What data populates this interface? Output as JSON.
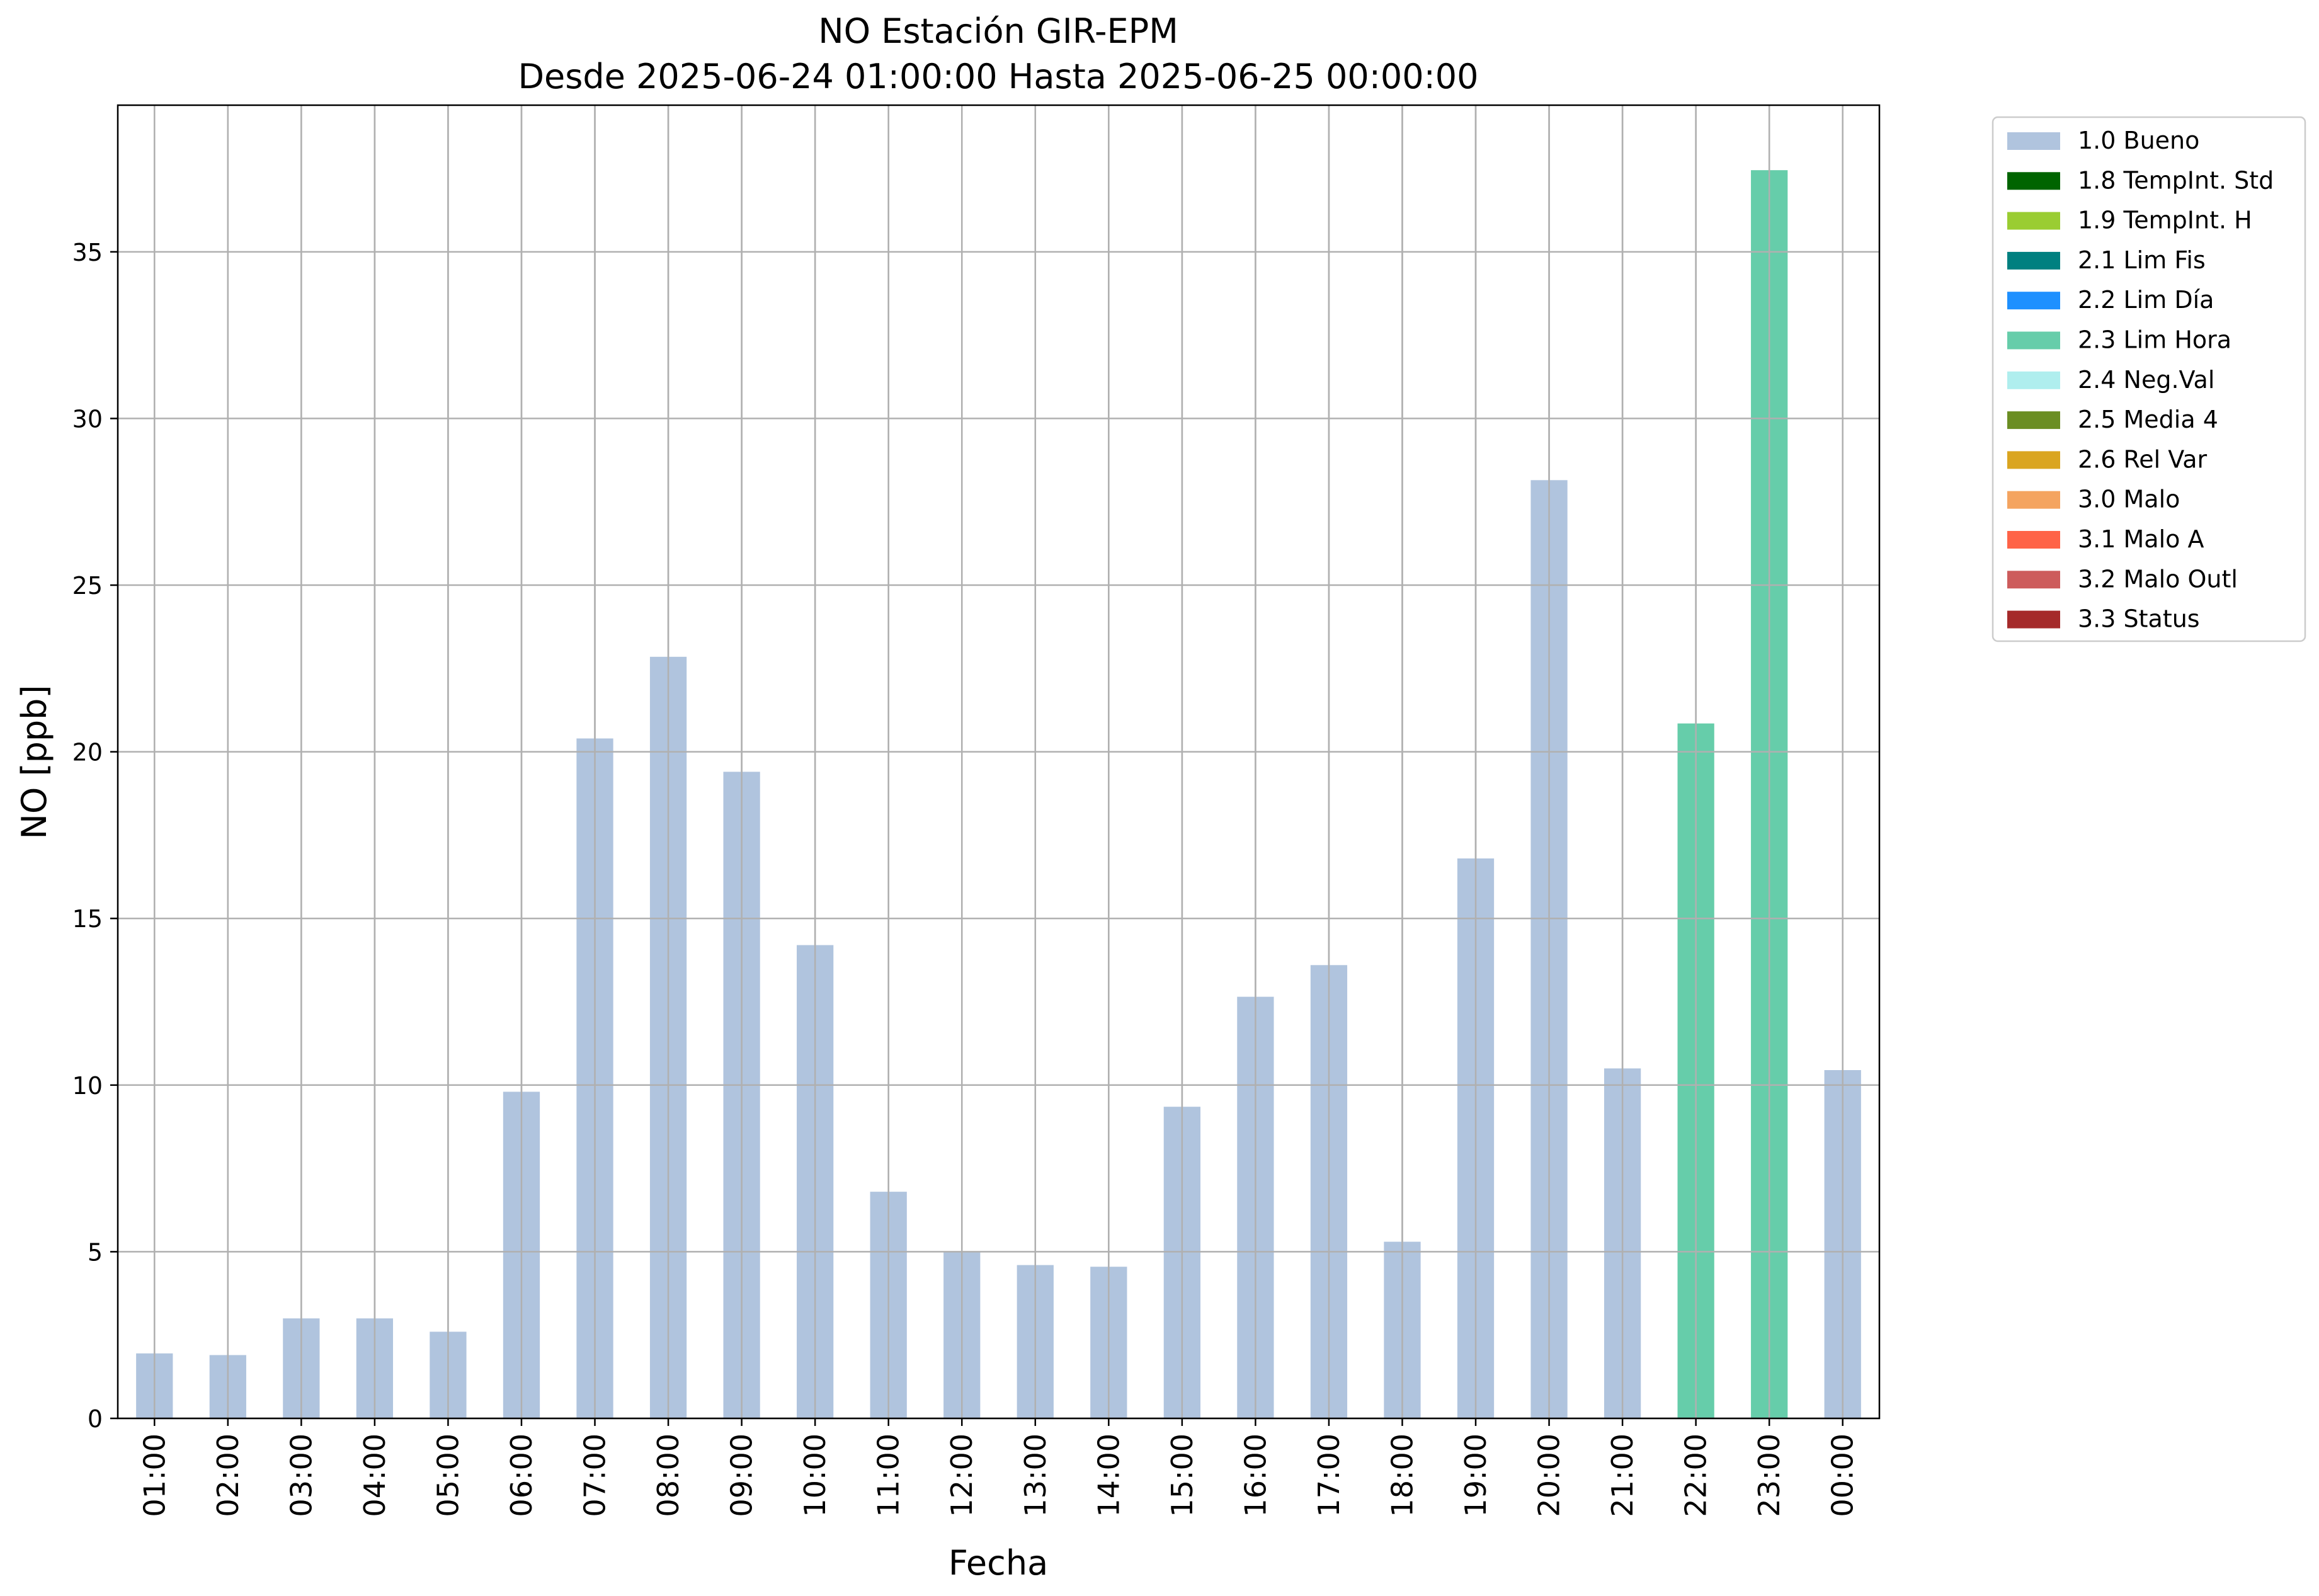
{
  "chart_data": {
    "type": "bar",
    "title": "NO Estación GIR-EPM",
    "subtitle": "Desde 2025-06-24 01:00:00 Hasta 2025-06-25 00:00:00",
    "xlabel": "Fecha",
    "ylabel": "NO [ppb]",
    "ylim": [
      0,
      39.4
    ],
    "yticks": [
      0,
      5,
      10,
      15,
      20,
      25,
      30,
      35
    ],
    "grid": true,
    "legend_position": "outside-right-top",
    "categories": [
      "01:00",
      "02:00",
      "03:00",
      "04:00",
      "05:00",
      "06:00",
      "07:00",
      "08:00",
      "09:00",
      "10:00",
      "11:00",
      "12:00",
      "13:00",
      "14:00",
      "15:00",
      "16:00",
      "17:00",
      "18:00",
      "19:00",
      "20:00",
      "21:00",
      "22:00",
      "23:00",
      "00:00"
    ],
    "values": [
      1.95,
      1.9,
      3.0,
      3.0,
      2.6,
      9.8,
      20.4,
      22.85,
      19.4,
      14.2,
      6.8,
      5.0,
      4.6,
      4.55,
      9.35,
      12.65,
      13.6,
      5.3,
      16.8,
      28.15,
      10.5,
      20.85,
      37.45,
      10.45
    ],
    "flags": [
      "1.0 Bueno",
      "1.0 Bueno",
      "1.0 Bueno",
      "1.0 Bueno",
      "1.0 Bueno",
      "1.0 Bueno",
      "1.0 Bueno",
      "1.0 Bueno",
      "1.0 Bueno",
      "1.0 Bueno",
      "1.0 Bueno",
      "1.0 Bueno",
      "1.0 Bueno",
      "1.0 Bueno",
      "1.0 Bueno",
      "1.0 Bueno",
      "1.0 Bueno",
      "1.0 Bueno",
      "1.0 Bueno",
      "1.0 Bueno",
      "1.0 Bueno",
      "2.3 Lim Hora",
      "2.3 Lim Hora",
      "1.0 Bueno"
    ],
    "legend": [
      {
        "label": "1.0 Bueno",
        "color": "#b0c4de"
      },
      {
        "label": "1.8 TempInt. Std",
        "color": "#006400"
      },
      {
        "label": "1.9 TempInt. H",
        "color": "#9acd32"
      },
      {
        "label": "2.1 Lim Fis",
        "color": "#008080"
      },
      {
        "label": "2.2 Lim Día",
        "color": "#1e90ff"
      },
      {
        "label": "2.3 Lim Hora",
        "color": "#66cdaa"
      },
      {
        "label": "2.4 Neg.Val",
        "color": "#afeeee"
      },
      {
        "label": "2.5 Media 4",
        "color": "#6b8e23"
      },
      {
        "label": "2.6 Rel Var",
        "color": "#daa520"
      },
      {
        "label": "3.0 Malo",
        "color": "#f4a460"
      },
      {
        "label": "3.1 Malo A",
        "color": "#ff6347"
      },
      {
        "label": "3.2 Malo Outl",
        "color": "#cd5c5c"
      },
      {
        "label": "3.3 Status",
        "color": "#a52a2a"
      }
    ]
  }
}
